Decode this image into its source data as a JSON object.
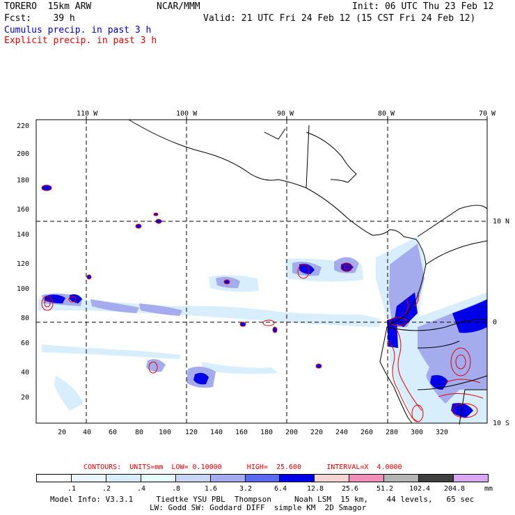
{
  "header": {
    "model_name": "TORERO  15km ARW",
    "center": "NCAR/MMM",
    "init": "Init: 06 UTC Thu 23 Feb 12",
    "forecast": "Fcst:    39 h",
    "valid": "Valid: 21 UTC Fri 24 Feb 12 (15 CST Fri 24 Feb 12)",
    "cumulus_title": "Cumulus precip. in past 3 h",
    "explicit_title": "Explicit precip. in past 3 h"
  },
  "axes": {
    "top_labels": [
      "110 W",
      "100 W",
      "90 W",
      "80 W",
      "70 W"
    ],
    "right_labels": [
      "10 N",
      "0",
      "10 S"
    ],
    "x_ticks": [
      "20",
      "40",
      "60",
      "80",
      "100",
      "120",
      "140",
      "160",
      "180",
      "200",
      "220",
      "240",
      "260",
      "280",
      "300",
      "320"
    ],
    "y_ticks": [
      "20",
      "40",
      "60",
      "80",
      "100",
      "120",
      "140",
      "160",
      "180",
      "200",
      "220"
    ]
  },
  "contour_info": "CONTOURS:  UNITS=mm  LOW= 0.10000      HIGH=  25.600      INTERVAL=X  4.0000",
  "colorbar": {
    "colors": [
      "#ffffff",
      "#ecf6ff",
      "#d8eefc",
      "#e6fbfb",
      "#c8d6f4",
      "#a4acee",
      "#5a6af0",
      "#0000e8",
      "#f6d4d4",
      "#f090b8",
      "#b4b4b4",
      "#404040",
      "#d8a8f4"
    ],
    "labels": [
      ".1",
      ".2",
      ".4",
      ".8",
      "1.6",
      "3.2",
      "6.4",
      "12.8",
      "25.6",
      "51.2",
      "102.4",
      "204.8"
    ],
    "units": "mm"
  },
  "footer": {
    "line1": "Model Info: V3.3.1     Tiedtke YSU PBL  Thompson     Noah LSM  15 km,    44 levels,   65 sec",
    "line2": "LW: Godd SW: Goddard DIFF  simple KM  2D Smagor"
  }
}
